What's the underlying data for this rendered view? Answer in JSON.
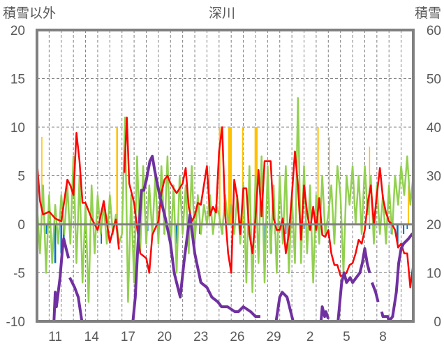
{
  "chart_data": {
    "type": "line",
    "title": "深川",
    "left_axis_label": "積雪以外",
    "right_axis_label": "積雪",
    "ylim_left": [
      -10,
      20
    ],
    "yticks_left": [
      "20",
      "15",
      "10",
      "5",
      "0",
      "-5",
      "-10"
    ],
    "ylim_right": [
      0,
      60
    ],
    "yticks_right": [
      "60",
      "50",
      "40",
      "30",
      "20",
      "10",
      "0"
    ],
    "x_unit": "days since 10th 00:00",
    "xlim": [
      0,
      31
    ],
    "xtick_labels": [
      "11",
      "14",
      "17",
      "20",
      "23",
      "26",
      "29",
      "2",
      "5",
      "8"
    ],
    "xtick_days": [
      1.5,
      4.5,
      7.5,
      10.5,
      13.5,
      16.5,
      19.5,
      22.5,
      25.5,
      28.5
    ],
    "grid": true,
    "colors": {
      "red": "#ff0000",
      "green": "#92d050",
      "orange": "#ffc000",
      "blue": "#0070c0",
      "purple": "#7030a0",
      "axis": "#808080"
    },
    "series": [
      {
        "name": "red",
        "axis": "left",
        "points": [
          [
            0,
            6.5
          ],
          [
            0.25,
            2.4
          ],
          [
            0.5,
            1
          ],
          [
            1,
            1.3
          ],
          [
            1.5,
            0.6
          ],
          [
            2,
            0.3
          ],
          [
            2.5,
            4.6
          ],
          [
            2.75,
            4
          ],
          [
            3,
            3
          ],
          [
            3.25,
            9.4
          ],
          [
            3.5,
            6.5
          ],
          [
            3.75,
            2.2
          ],
          [
            4,
            2.2
          ],
          [
            4.5,
            0.6
          ],
          [
            5,
            -0.6
          ],
          [
            5.5,
            2.4
          ],
          [
            6,
            -1.9
          ],
          [
            6.5,
            0.5
          ],
          [
            6.75,
            -2.6
          ],
          null,
          [
            7.2,
            5.3
          ],
          [
            7.4,
            11
          ],
          [
            7.6,
            4.2
          ],
          [
            8,
            2.2
          ],
          [
            8.5,
            -3
          ],
          [
            9,
            -3.5
          ],
          [
            9.25,
            -5
          ],
          [
            9.5,
            -1.1
          ],
          [
            10,
            0.3
          ],
          [
            10.25,
            3.2
          ],
          [
            10.5,
            4.6
          ],
          [
            10.75,
            5
          ],
          [
            11,
            4.2
          ],
          [
            11.5,
            3.2
          ],
          [
            12,
            4.2
          ],
          [
            12.25,
            5.8
          ],
          [
            12.5,
            1.8
          ],
          [
            12.75,
            0.3
          ],
          [
            13,
            0.9
          ],
          [
            13.25,
            2.2
          ],
          [
            13.5,
            2
          ],
          [
            14,
            6
          ],
          [
            14.25,
            0.9
          ],
          [
            14.5,
            1.8
          ],
          [
            14.75,
            1.2
          ],
          [
            15,
            7.5
          ],
          [
            15.25,
            10
          ],
          [
            15.5,
            1.1
          ],
          [
            15.75,
            -3
          ],
          [
            16,
            -5
          ],
          [
            16.25,
            4.6
          ],
          [
            16.5,
            2.7
          ],
          [
            16.75,
            -1
          ],
          [
            17,
            3.7
          ],
          [
            17.25,
            3.7
          ],
          [
            17.5,
            -1
          ],
          [
            17.75,
            -3
          ],
          [
            18,
            0.6
          ],
          [
            18.25,
            5.6
          ],
          [
            18.5,
            0.8
          ],
          [
            18.75,
            6.5
          ],
          [
            19,
            6.5
          ],
          [
            19.25,
            6.5
          ],
          [
            19.5,
            0.6
          ],
          [
            19.75,
            -0.6
          ],
          [
            20,
            -0.6
          ],
          [
            20.25,
            0.6
          ],
          [
            20.5,
            -3
          ],
          [
            20.75,
            -1
          ],
          [
            21,
            3
          ],
          [
            21.25,
            7.5
          ],
          [
            21.5,
            4
          ],
          [
            21.75,
            -1.6
          ],
          [
            22,
            4
          ],
          [
            22.25,
            1.2
          ],
          [
            22.5,
            -0.6
          ],
          [
            22.75,
            1.8
          ],
          [
            23,
            -0.6
          ],
          [
            23.25,
            2.7
          ],
          [
            23.5,
            -1.1
          ],
          [
            23.75,
            -1.3
          ],
          [
            24,
            -0.6
          ],
          [
            24.25,
            -3
          ],
          [
            24.5,
            -4.2
          ],
          [
            24.75,
            -4.2
          ],
          [
            25,
            -5.3
          ],
          [
            25.25,
            -5.3
          ],
          [
            25.5,
            -5
          ],
          [
            25.75,
            -4.2
          ],
          [
            26,
            -4
          ],
          [
            26.25,
            -3
          ],
          [
            26.5,
            -1.6
          ],
          [
            26.75,
            -2
          ],
          [
            27,
            -0.6
          ],
          [
            27.25,
            2.2
          ],
          [
            27.5,
            4
          ],
          [
            27.75,
            0
          ],
          [
            28,
            3
          ],
          [
            28.25,
            5.8
          ],
          [
            28.5,
            2.7
          ],
          [
            28.75,
            1.2
          ],
          [
            29,
            0.3
          ],
          [
            29.25,
            0
          ],
          [
            29.5,
            -0.6
          ],
          [
            29.75,
            -2.4
          ],
          [
            30,
            -2
          ],
          [
            30.25,
            -3
          ],
          [
            30.5,
            -3
          ],
          [
            30.75,
            -6.5
          ],
          [
            31,
            -4
          ]
        ]
      },
      {
        "name": "green",
        "axis": "left",
        "step": 0.25,
        "values": [
          2,
          -3,
          4,
          -5,
          3,
          -4,
          2,
          -2,
          3,
          -1,
          4,
          -2,
          7,
          -4,
          5,
          -6,
          2,
          -8,
          4,
          -3,
          3,
          -1,
          2,
          -2,
          3,
          -1,
          1,
          -2,
          -1,
          11,
          -8,
          3,
          -6,
          7,
          -3,
          6,
          -2,
          4,
          -1,
          5,
          -2,
          6,
          -1,
          7,
          -3,
          4,
          -5,
          5,
          -1,
          4,
          -3,
          6,
          -2,
          3,
          -1,
          2,
          0,
          3,
          -1,
          2,
          1,
          -1,
          3,
          0,
          2,
          -1,
          3,
          -2,
          4,
          -6,
          6,
          -7,
          5,
          -4,
          7,
          -6,
          6,
          -3,
          4,
          -5,
          5,
          -2,
          6,
          -5,
          3,
          -4,
          13,
          -4,
          6,
          -3,
          4,
          -6,
          3,
          -2,
          5,
          -1,
          1,
          4,
          -2,
          6,
          3,
          -5,
          5,
          2,
          6,
          0,
          5,
          -1,
          6,
          1,
          5,
          -2,
          4,
          -1,
          3,
          -2,
          4,
          -1,
          5,
          2,
          6,
          3,
          7,
          2,
          5
        ]
      },
      {
        "name": "purple",
        "axis": "right",
        "points": [
          [
            0,
            0
          ],
          [
            1.4,
            0
          ],
          [
            1.5,
            6
          ],
          [
            1.6,
            3
          ],
          [
            1.9,
            9
          ],
          [
            2.1,
            15
          ],
          [
            2.2,
            17
          ],
          [
            2.4,
            15
          ],
          [
            2.6,
            13
          ],
          null,
          [
            2.7,
            9
          ],
          [
            2.9,
            8
          ],
          [
            3.1,
            7
          ],
          [
            3.4,
            5
          ],
          [
            3.7,
            0
          ],
          [
            6.8,
            0
          ],
          null,
          [
            7.2,
            0
          ],
          [
            7.9,
            0
          ],
          [
            8.1,
            5
          ],
          [
            8.3,
            15
          ],
          [
            8.6,
            27
          ],
          [
            8.8,
            27
          ],
          [
            9.0,
            29
          ],
          [
            9.3,
            33
          ],
          [
            9.5,
            34
          ],
          [
            9.7,
            31
          ],
          [
            10.1,
            26
          ],
          [
            10.6,
            21
          ],
          [
            11.0,
            16
          ],
          [
            11.3,
            10
          ],
          [
            11.6,
            7
          ],
          [
            11.8,
            5
          ],
          [
            12.1,
            12
          ],
          [
            12.4,
            18
          ],
          [
            12.6,
            22
          ],
          [
            13.0,
            14
          ],
          [
            13.5,
            8
          ],
          [
            14.0,
            7
          ],
          [
            14.4,
            5
          ],
          [
            14.9,
            4
          ],
          [
            15.2,
            3
          ],
          [
            15.7,
            3
          ],
          [
            16.3,
            2
          ],
          [
            16.6,
            2
          ],
          [
            17.0,
            3
          ],
          [
            17.6,
            2
          ],
          [
            18.0,
            1
          ],
          [
            18.4,
            1
          ],
          null,
          [
            18.5,
            0
          ],
          [
            19.7,
            0
          ],
          [
            20.0,
            5
          ],
          [
            20.2,
            6
          ],
          [
            20.6,
            5
          ],
          [
            20.9,
            2
          ],
          [
            21.1,
            0
          ],
          [
            23.4,
            0
          ],
          [
            23.5,
            3
          ],
          [
            23.7,
            1
          ],
          [
            23.8,
            2
          ],
          [
            24.0,
            0.5
          ],
          null,
          [
            24.1,
            0
          ],
          [
            24.8,
            0
          ],
          [
            25.1,
            8
          ],
          [
            25.3,
            10
          ],
          [
            25.5,
            8
          ],
          [
            25.8,
            9
          ],
          [
            26.0,
            8
          ],
          [
            26.3,
            9
          ],
          [
            26.6,
            10
          ],
          [
            26.8,
            12
          ],
          [
            27.0,
            15
          ],
          [
            27.2,
            12
          ],
          [
            27.4,
            10
          ],
          null,
          [
            27.6,
            8
          ],
          [
            27.9,
            6
          ],
          [
            28.1,
            4
          ],
          null,
          [
            28.4,
            2
          ],
          [
            28.5,
            1
          ],
          [
            28.9,
            1
          ],
          [
            29.0,
            0
          ],
          [
            29.3,
            1
          ],
          [
            29.6,
            6
          ],
          [
            29.8,
            12
          ],
          [
            30.0,
            15
          ],
          [
            30.2,
            16
          ],
          [
            30.6,
            17
          ],
          [
            30.9,
            18
          ],
          [
            31,
            18
          ]
        ]
      },
      {
        "name": "orange-bars",
        "axis": "left",
        "bars": [
          [
            0.4,
            9,
            0.05
          ],
          [
            6.6,
            10,
            0.15
          ],
          [
            14.2,
            6,
            0.05
          ],
          [
            15.05,
            10,
            0.12
          ],
          [
            15.9,
            10,
            0.3
          ],
          [
            16.95,
            10,
            0.08
          ],
          [
            18.05,
            10,
            0.25
          ],
          [
            23.15,
            10,
            0.12
          ],
          [
            24.1,
            9,
            0.06
          ],
          [
            27.4,
            8,
            0.06
          ],
          [
            30.6,
            4,
            0.1
          ]
        ]
      },
      {
        "name": "blue-bars",
        "axis": "left",
        "bars": [
          [
            0.8,
            -1,
            0.15
          ],
          [
            1.5,
            -4,
            0.15
          ],
          [
            2.0,
            -3,
            0.15
          ],
          [
            2.2,
            -2,
            0.15
          ],
          [
            4,
            -1,
            0.1
          ],
          [
            5.3,
            -2,
            0.1
          ],
          [
            9.1,
            -0.7,
            0.15
          ],
          [
            10.5,
            -1,
            0.15
          ],
          [
            11.5,
            -2,
            0.15
          ],
          [
            13.4,
            -1,
            0.1
          ],
          [
            15.3,
            -1,
            0.1
          ],
          [
            18.8,
            -3,
            0.12
          ],
          [
            19.3,
            -3,
            0.12
          ],
          [
            19.6,
            -1,
            0.1
          ],
          [
            20.5,
            -1,
            0.1
          ],
          [
            22,
            -0.5,
            0.1
          ],
          [
            23.8,
            -0.6,
            0.1
          ],
          [
            27.4,
            -0.5,
            0.1
          ],
          [
            29.2,
            -1,
            0.12
          ],
          [
            29.7,
            -2,
            0.15
          ],
          [
            30.2,
            -1,
            0.12
          ],
          [
            30.5,
            -0.5,
            0.1
          ]
        ]
      }
    ]
  }
}
